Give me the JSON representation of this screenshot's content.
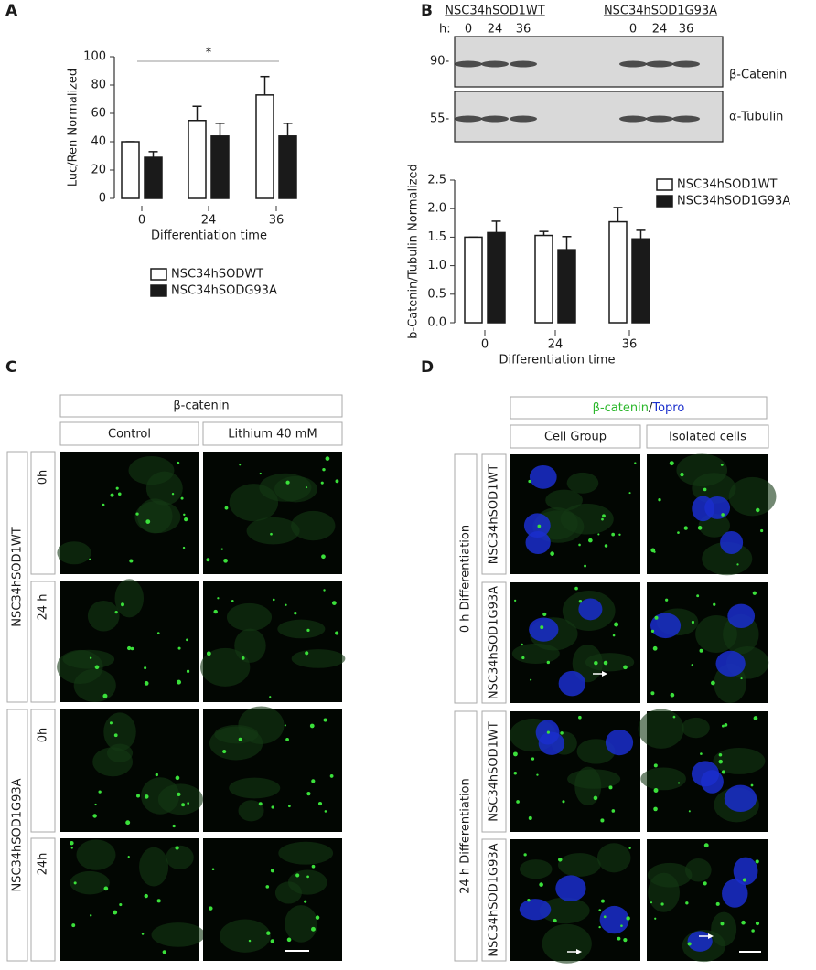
{
  "panel_letters": [
    "A",
    "B",
    "C",
    "D"
  ],
  "chart_data": [
    {
      "type": "bar",
      "y_label": "Luc/Ren Normalized",
      "x_label": "Differentiation time",
      "categories": [
        "0",
        "24",
        "36"
      ],
      "series": [
        {
          "name": "NSC34hSODWT",
          "color": "#ffffff",
          "values": [
            40,
            55,
            73
          ],
          "errors": [
            0,
            10,
            13
          ]
        },
        {
          "name": "NSC34hSODG93A",
          "color": "#1a1a1a",
          "values": [
            29,
            44,
            44
          ],
          "errors": [
            4,
            9,
            9
          ]
        }
      ],
      "ylim": [
        0,
        100
      ],
      "yticks": [
        0,
        20,
        40,
        60,
        80,
        100
      ],
      "annotations": [
        "*"
      ],
      "legend": "bottom"
    },
    {
      "type": "bar",
      "y_label": "b-Catenin/Tubulin Normalized",
      "x_label": "Differentiation time",
      "categories": [
        "0",
        "24",
        "36"
      ],
      "series": [
        {
          "name": "NSC34hSOD1WT",
          "color": "#ffffff",
          "values": [
            1.5,
            1.53,
            1.77
          ],
          "errors": [
            0,
            0.07,
            0.25
          ]
        },
        {
          "name": "NSC34hSOD1G93A",
          "color": "#1a1a1a",
          "values": [
            1.58,
            1.28,
            1.47
          ],
          "errors": [
            0.2,
            0.23,
            0.15
          ]
        }
      ],
      "ylim": [
        0,
        2.5
      ],
      "yticks": [
        {
          "value": 0,
          "label": "0.0"
        },
        0.5,
        {
          "value": 1,
          "label": "1.0"
        },
        1.5,
        {
          "value": 2,
          "label": "2.0"
        },
        2.5
      ],
      "legend": "right"
    }
  ],
  "blot": {
    "groups": [
      "NSC34hSOD1WT",
      "NSC34hSOD1G93A"
    ],
    "time_prefix": "h:",
    "times": [
      "0",
      "24",
      "36",
      "0",
      "24",
      "36"
    ],
    "markers": [
      "90-",
      "55-"
    ],
    "proteins": [
      "β-Catenin",
      "α-Tubulin"
    ]
  },
  "panel_c": {
    "header": "β-catenin",
    "columns": [
      "Control",
      "Lithium 40 mM"
    ],
    "groups": [
      {
        "label": "NSC34hSOD1WT",
        "rows": [
          "0h",
          "24 h"
        ]
      },
      {
        "label": "NSC34hSOD1G93A",
        "rows": [
          "0h",
          "24h"
        ]
      }
    ]
  },
  "panel_d": {
    "header": [
      "β-catenin",
      "/",
      "Topro"
    ],
    "columns": [
      "Cell Group",
      "Isolated cells"
    ],
    "groups": [
      {
        "label": "0 h Differentiation",
        "rows": [
          "NSC34hSOD1WT",
          "NSC34hSOD1G93A"
        ]
      },
      {
        "label": "24 h Differentiation",
        "rows": [
          "NSC34hSOD1WT",
          "NSC34hSOD1G93A"
        ]
      }
    ]
  }
}
